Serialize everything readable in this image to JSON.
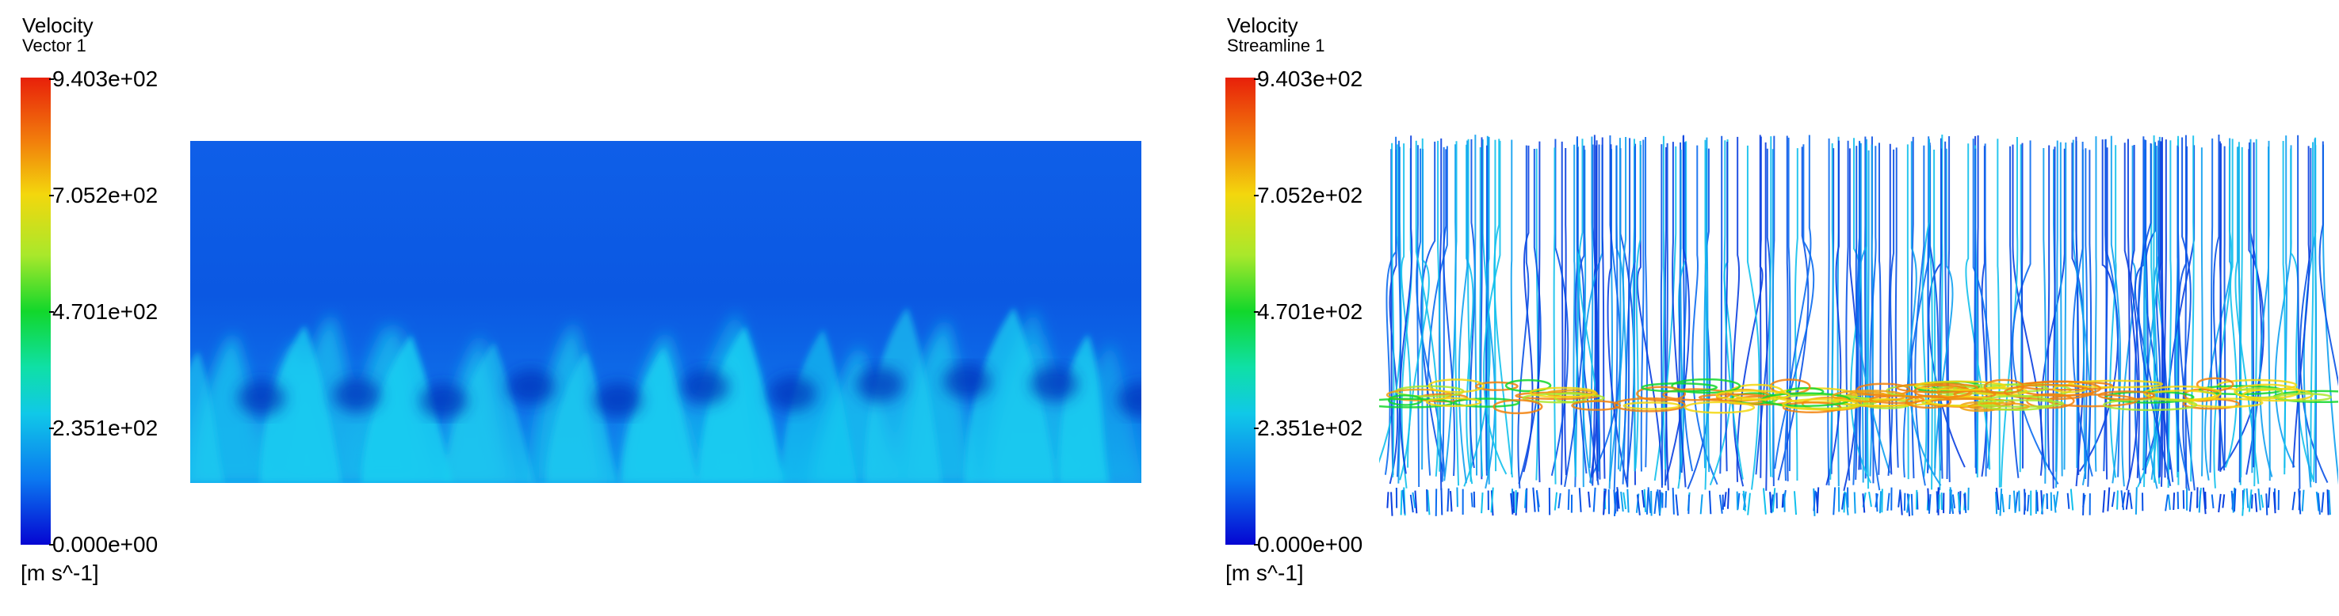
{
  "panels": [
    {
      "legend_title": "Velocity",
      "legend_subtitle": "Vector 1",
      "ticks": [
        "9.403e+02",
        "7.052e+02",
        "4.701e+02",
        "2.351e+02",
        "0.000e+00"
      ],
      "unit": "[m s^-1]"
    },
    {
      "legend_title": "Velocity",
      "legend_subtitle": "Streamline 1",
      "ticks": [
        "9.403e+02",
        "7.052e+02",
        "4.701e+02",
        "2.351e+02",
        "0.000e+00"
      ],
      "unit": "[m s^-1]"
    }
  ],
  "colormap": [
    "#0505d2",
    "#0b78f0",
    "#10c8e8",
    "#0fe0a6",
    "#12d72b",
    "#a9e82b",
    "#f3d70d",
    "#f2810c",
    "#e8200a"
  ]
}
